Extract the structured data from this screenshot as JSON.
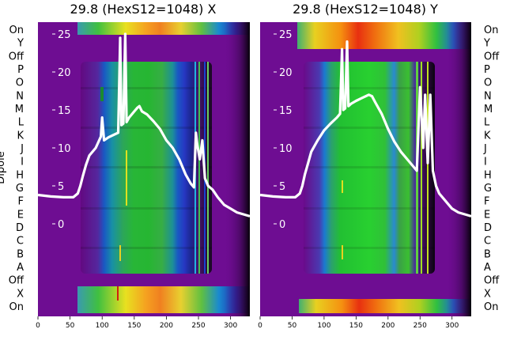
{
  "chart_data": [
    {
      "type": "heatmap",
      "title": "29.8 (HexS12=1048) X",
      "ylabel": "Dipole",
      "row_labels": [
        "On",
        "Y",
        "Off",
        "P",
        "O",
        "N",
        "M",
        "L",
        "K",
        "J",
        "I",
        "H",
        "G",
        "F",
        "E",
        "D",
        "C",
        "B",
        "A",
        "Off",
        "X",
        "On"
      ],
      "x_ticks": [
        0,
        50,
        100,
        150,
        200,
        250,
        300
      ],
      "xlim": [
        0,
        330
      ],
      "overlay_ticks": [
        25,
        20,
        15,
        10,
        5,
        0
      ],
      "colormap": "nipy_spectral",
      "overlay_line": {
        "color": "#ffffff",
        "x": [
          0,
          20,
          40,
          55,
          62,
          66,
          70,
          75,
          80,
          90,
          98,
          100,
          103,
          110,
          120,
          125,
          128,
          130,
          133,
          136,
          138,
          142,
          150,
          155,
          158,
          162,
          170,
          180,
          190,
          200,
          210,
          220,
          230,
          238,
          243,
          246,
          248,
          252,
          256,
          260,
          265,
          272,
          280,
          290,
          300,
          310,
          330
        ],
        "y": [
          3.8,
          3.6,
          3.5,
          3.5,
          4.0,
          5.0,
          6.3,
          7.8,
          9.0,
          10.0,
          11.5,
          14.0,
          11.0,
          11.4,
          11.8,
          12.0,
          24.5,
          13.0,
          13.2,
          25.0,
          13.4,
          14.0,
          14.8,
          15.3,
          15.5,
          14.8,
          14.4,
          13.5,
          12.5,
          11.0,
          10.0,
          8.5,
          6.5,
          5.3,
          4.8,
          12.0,
          10.5,
          8.5,
          11.0,
          6.0,
          5.0,
          4.5,
          3.5,
          2.5,
          2.0,
          1.5,
          1.0
        ]
      }
    },
    {
      "type": "heatmap",
      "title": "29.8 (HexS12=1048) Y",
      "ylabel": "",
      "row_labels": [
        "On",
        "Y",
        "Off",
        "P",
        "O",
        "N",
        "M",
        "L",
        "K",
        "J",
        "I",
        "H",
        "G",
        "F",
        "E",
        "D",
        "C",
        "B",
        "A",
        "Off",
        "X",
        "On"
      ],
      "x_ticks": [
        0,
        50,
        100,
        150,
        200,
        250,
        300
      ],
      "xlim": [
        0,
        330
      ],
      "overlay_ticks": [
        25,
        20,
        15,
        10,
        5,
        0
      ],
      "colormap": "nipy_spectral",
      "overlay_line": {
        "color": "#ffffff",
        "x": [
          0,
          20,
          40,
          55,
          62,
          66,
          70,
          75,
          80,
          90,
          100,
          110,
          120,
          125,
          128,
          130,
          133,
          136,
          138,
          142,
          150,
          160,
          170,
          175,
          180,
          190,
          200,
          210,
          220,
          230,
          240,
          245,
          250,
          255,
          258,
          262,
          266,
          270,
          275,
          280,
          290,
          300,
          310,
          330
        ],
        "y": [
          3.8,
          3.6,
          3.5,
          3.5,
          4.0,
          5.0,
          6.5,
          8.0,
          9.5,
          11.0,
          12.3,
          13.2,
          14.0,
          14.5,
          23.0,
          15.0,
          15.2,
          24.0,
          15.5,
          15.8,
          16.2,
          16.6,
          17.0,
          16.8,
          16.0,
          14.5,
          12.5,
          10.8,
          9.5,
          8.5,
          7.5,
          7.0,
          18.0,
          10.0,
          17.0,
          8.0,
          17.0,
          7.0,
          5.0,
          4.0,
          3.0,
          2.0,
          1.5,
          1.0
        ]
      }
    }
  ]
}
